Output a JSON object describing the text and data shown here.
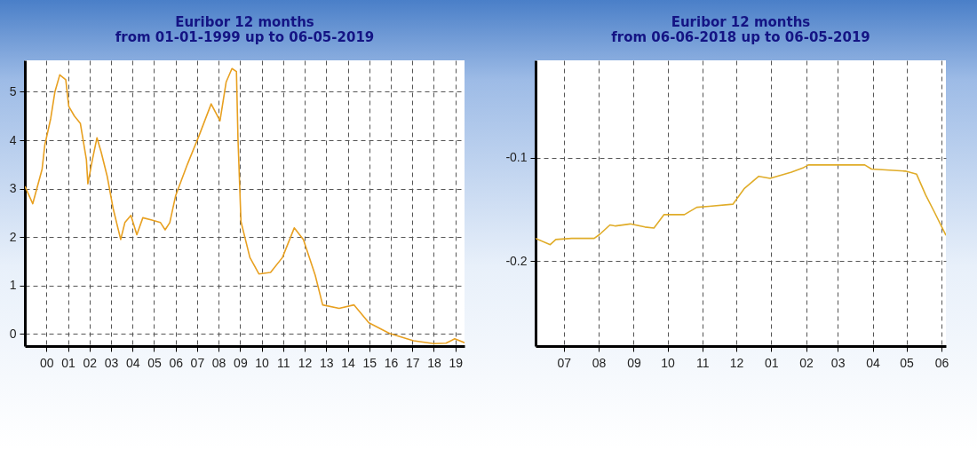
{
  "chart_data": [
    {
      "type": "line",
      "title": "Euribor 12 months",
      "subtitle": "from 01-01-1999 up to 06-05-2019",
      "x": [
        "1999-01-01",
        "1999-05-15",
        "1999-10-20",
        "1999-12-05",
        "2000-03-15",
        "2000-05-25",
        "2000-08-15",
        "2000-11-25",
        "2001-01-15",
        "2001-04-20",
        "2001-07-30",
        "2001-11-10",
        "2001-12-05",
        "2002-02-20",
        "2002-05-08",
        "2002-07-20",
        "2002-10-30",
        "2003-02-05",
        "2003-06-15",
        "2003-08-25",
        "2003-12-05",
        "2004-03-15",
        "2004-06-25",
        "2004-11-25",
        "2005-04-20",
        "2005-07-08",
        "2005-09-25",
        "2006-01-01",
        "2006-07-20",
        "2007-02-05",
        "2007-08-28",
        "2008-01-25",
        "2008-05-08",
        "2008-08-15",
        "2008-10-30",
        "2008-11-25",
        "2009-01-15",
        "2009-06-15",
        "2009-11-15",
        "2010-06-01",
        "2010-12-20",
        "2011-07-08",
        "2011-12-10",
        "2012-06-28",
        "2012-11-01",
        "2013-08-08",
        "2014-04-15",
        "2014-12-25",
        "2015-12-10",
        "2017-01-20",
        "2018-01-01",
        "2018-07-25",
        "2018-12-20",
        "2019-06-05"
      ],
      "values": [
        3.05,
        2.69,
        3.4,
        3.9,
        4.45,
        5.0,
        5.35,
        5.25,
        4.7,
        4.5,
        4.35,
        3.6,
        3.1,
        3.6,
        4.05,
        3.75,
        3.25,
        2.6,
        1.95,
        2.3,
        2.45,
        2.05,
        2.4,
        2.35,
        2.3,
        2.15,
        2.3,
        2.85,
        3.5,
        4.1,
        4.75,
        4.4,
        5.2,
        5.48,
        5.42,
        4.03,
        2.32,
        1.58,
        1.24,
        1.27,
        1.58,
        2.19,
        1.95,
        1.21,
        0.6,
        0.53,
        0.6,
        0.23,
        0.01,
        -0.14,
        -0.2,
        -0.19,
        -0.1,
        -0.18
      ],
      "color": "#e8a020",
      "xlim": [
        "1999-01-01",
        "2019-06-05"
      ],
      "xticks": [
        {
          "value": "2000-01-01",
          "label": "00"
        },
        {
          "value": "2001-01-01",
          "label": "01"
        },
        {
          "value": "2002-01-01",
          "label": "02"
        },
        {
          "value": "2003-01-01",
          "label": "03"
        },
        {
          "value": "2004-01-01",
          "label": "04"
        },
        {
          "value": "2005-01-01",
          "label": "05"
        },
        {
          "value": "2006-01-01",
          "label": "06"
        },
        {
          "value": "2007-01-01",
          "label": "07"
        },
        {
          "value": "2008-01-01",
          "label": "08"
        },
        {
          "value": "2009-01-01",
          "label": "09"
        },
        {
          "value": "2010-01-01",
          "label": "10"
        },
        {
          "value": "2011-01-01",
          "label": "11"
        },
        {
          "value": "2012-01-01",
          "label": "12"
        },
        {
          "value": "2013-01-01",
          "label": "13"
        },
        {
          "value": "2014-01-01",
          "label": "14"
        },
        {
          "value": "2015-01-01",
          "label": "15"
        },
        {
          "value": "2016-01-01",
          "label": "16"
        },
        {
          "value": "2017-01-01",
          "label": "17"
        },
        {
          "value": "2018-01-01",
          "label": "18"
        },
        {
          "value": "2019-01-01",
          "label": "19"
        }
      ],
      "ylim": [
        -0.25,
        5.65
      ],
      "yticks": [
        0,
        1,
        2,
        3,
        4,
        5
      ],
      "grid": true
    },
    {
      "type": "line",
      "title": "Euribor 12 months",
      "subtitle": "from 06-06-2018 up to 06-05-2019",
      "x": [
        "2018-06-06",
        "2018-06-19",
        "2018-06-24",
        "2018-07-08",
        "2018-07-28",
        "2018-08-02",
        "2018-08-11",
        "2018-08-16",
        "2018-08-29",
        "2018-09-11",
        "2018-09-19",
        "2018-09-28",
        "2018-10-16",
        "2018-10-27",
        "2018-11-07",
        "2018-11-28",
        "2018-12-08",
        "2018-12-21",
        "2018-12-31",
        "2019-01-19",
        "2019-01-29",
        "2019-02-03",
        "2019-03-02",
        "2019-03-25",
        "2019-03-31",
        "2019-04-30",
        "2019-05-10",
        "2019-05-18",
        "2019-05-26",
        "2019-06-05"
      ],
      "values": [
        -0.178,
        -0.184,
        -0.179,
        -0.178,
        -0.178,
        -0.174,
        -0.165,
        -0.166,
        -0.164,
        -0.167,
        -0.168,
        -0.155,
        -0.155,
        -0.148,
        -0.147,
        -0.145,
        -0.13,
        -0.118,
        -0.12,
        -0.114,
        -0.11,
        -0.107,
        -0.107,
        -0.107,
        -0.111,
        -0.113,
        -0.116,
        -0.136,
        -0.153,
        -0.175
      ],
      "color": "#e0ac28",
      "xlim": [
        "2018-06-06",
        "2019-06-05"
      ],
      "xticks": [
        {
          "value": "2018-07-01",
          "label": "07"
        },
        {
          "value": "2018-08-01",
          "label": "08"
        },
        {
          "value": "2018-09-01",
          "label": "09"
        },
        {
          "value": "2018-10-01",
          "label": "10"
        },
        {
          "value": "2018-11-01",
          "label": "11"
        },
        {
          "value": "2018-12-01",
          "label": "12"
        },
        {
          "value": "2019-01-01",
          "label": "01"
        },
        {
          "value": "2019-02-01",
          "label": "02"
        },
        {
          "value": "2019-03-01",
          "label": "03"
        },
        {
          "value": "2019-04-01",
          "label": "04"
        },
        {
          "value": "2019-05-01",
          "label": "05"
        },
        {
          "value": "2019-06-01",
          "label": "06"
        }
      ],
      "ylim": [
        -0.282,
        -0.006
      ],
      "yticks": [
        -0.1,
        -0.2
      ],
      "grid": true
    }
  ]
}
